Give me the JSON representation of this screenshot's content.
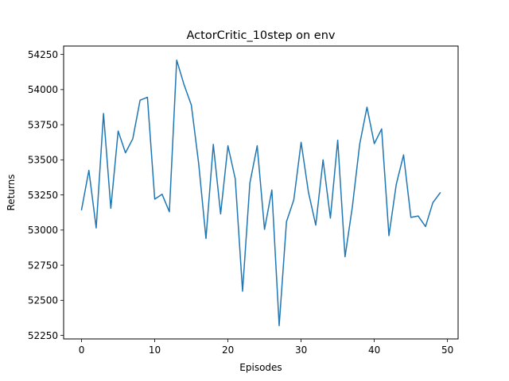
{
  "chart_data": {
    "type": "line",
    "title": "ActorCritic_10step on env",
    "xlabel": "Episodes",
    "ylabel": "Returns",
    "xlim": [
      -2.45,
      51.45
    ],
    "ylim": [
      52225,
      54310
    ],
    "xticks": [
      0,
      10,
      20,
      30,
      40,
      50
    ],
    "yticks": [
      52250,
      52500,
      52750,
      53000,
      53250,
      53500,
      53750,
      54000,
      54250
    ],
    "grid": false,
    "series": [
      {
        "color": "#1f77b4",
        "x": [
          0,
          1,
          2,
          3,
          4,
          5,
          6,
          7,
          8,
          9,
          10,
          11,
          12,
          13,
          14,
          15,
          16,
          17,
          18,
          19,
          20,
          21,
          22,
          23,
          24,
          25,
          26,
          27,
          28,
          29,
          30,
          31,
          32,
          33,
          34,
          35,
          36,
          37,
          38,
          39,
          40,
          41,
          42,
          43,
          44,
          45,
          46,
          47,
          48,
          49
        ],
        "values": [
          53145,
          53425,
          53015,
          53830,
          53155,
          53705,
          53550,
          53650,
          53925,
          53945,
          53220,
          53255,
          53130,
          54210,
          54035,
          53890,
          53475,
          52940,
          53610,
          53115,
          53600,
          53365,
          52565,
          53335,
          53600,
          53005,
          53285,
          52320,
          53060,
          53215,
          53625,
          53270,
          53035,
          53500,
          53085,
          53640,
          52810,
          53165,
          53610,
          53875,
          53615,
          53720,
          52960,
          53325,
          53535,
          53090,
          53100,
          53025,
          53195,
          53265
        ]
      }
    ]
  }
}
